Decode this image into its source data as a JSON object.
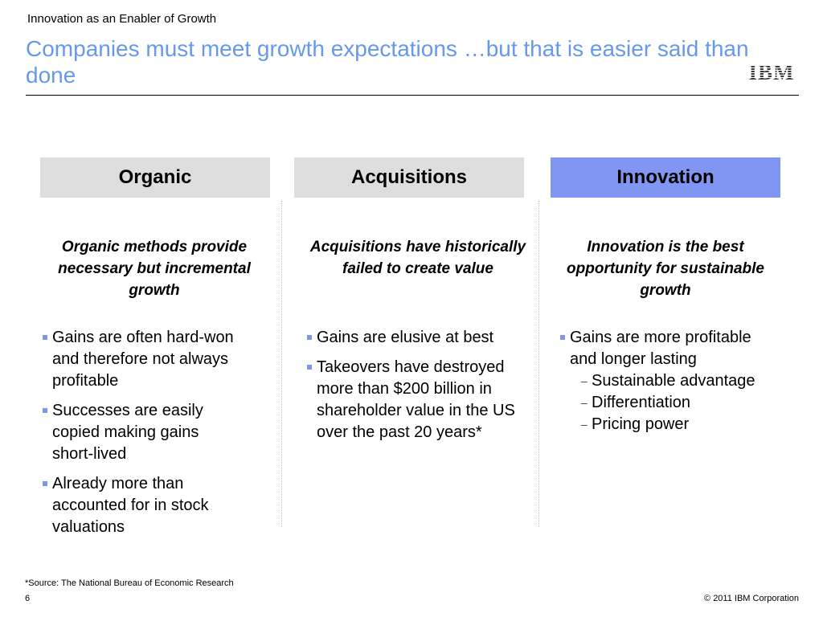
{
  "header": {
    "kicker": "Innovation as an Enabler of Growth",
    "title": "Companies must meet growth expectations …but that is easier said than done",
    "logo_text": "IBM"
  },
  "columns": [
    {
      "heading": "Organic",
      "subheading": "Organic methods provide necessary but incremental growth",
      "bullets": [
        "Gains are often hard-won and therefore not always profitable",
        "Successes are easily copied making gains short-lived",
        "Already more than accounted for in stock valuations"
      ]
    },
    {
      "heading": "Acquisitions",
      "subheading": "Acquisitions have historically failed to create value",
      "bullets": [
        "Gains are elusive at best",
        "Takeovers have destroyed more than $200 billion in shareholder value in the US over the past 20 years*"
      ]
    },
    {
      "heading": "Innovation",
      "subheading": "Innovation is the best opportunity for sustainable growth",
      "bullets": [
        "Gains are more profitable and longer lasting"
      ],
      "sub_bullets": [
        "Sustainable advantage",
        "Differentiation",
        "Pricing power"
      ]
    }
  ],
  "footer": {
    "footnote": "*Source: The National Bureau of Economic Research",
    "page_number": "6",
    "copyright": "© 2011 IBM Corporation"
  },
  "colors": {
    "title": "#6699ee",
    "highlight_header": "#8096f2",
    "neutral_header": "#dedede",
    "bullet": "#7e96e8"
  }
}
